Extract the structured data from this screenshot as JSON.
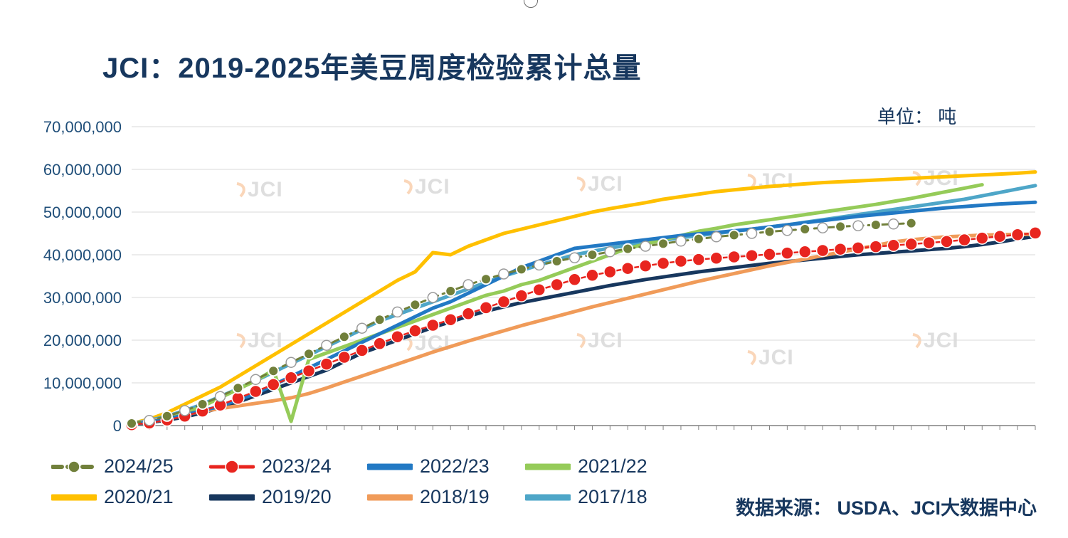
{
  "page": {
    "title": "JCI：2019-2025年美豆周度检验累计总量",
    "unit_label": "单位： 吨",
    "source": "数据来源： USDA、JCI大数据中心",
    "watermark": "JCI"
  },
  "chart_data": {
    "type": "line",
    "title": "JCI：2019-2025年美豆周度检验累计总量",
    "unit": "吨",
    "x_axis": "marketing-year week 1-52 (x tick marks shown, no labels)",
    "weeks": 52,
    "ylim_tons": [
      0,
      70000000
    ],
    "y_tick_labels": [
      "0",
      "10,000,000",
      "20,000,000",
      "30,000,000",
      "40,000,000",
      "50,000,000",
      "60,000,000",
      "70,000,000"
    ],
    "values_unit": "million tons (cumulative)",
    "grid": "horizontal only",
    "legend_position": "bottom",
    "series": [
      {
        "name": "2024/25",
        "color": "#71803B",
        "style": "dashed-marker",
        "values_millions": [
          0.5,
          1.2,
          2.2,
          3.5,
          5.0,
          6.8,
          8.8,
          10.8,
          12.8,
          14.8,
          16.8,
          18.8,
          20.8,
          22.8,
          24.8,
          26.6,
          28.3,
          30.0,
          31.5,
          33.0,
          34.3,
          35.5,
          36.6,
          37.6,
          38.5,
          39.3,
          40.0,
          40.7,
          41.4,
          42.0,
          42.6,
          43.2,
          43.7,
          44.2,
          44.6,
          45.0,
          45.4,
          45.7,
          46.0,
          46.3,
          46.6,
          46.8,
          47.0,
          47.2,
          47.4
        ]
      },
      {
        "name": "2023/24",
        "color": "#E8251F",
        "style": "line-marker",
        "values_millions": [
          0.2,
          0.6,
          1.3,
          2.2,
          3.4,
          4.8,
          6.4,
          8.0,
          9.6,
          11.2,
          12.8,
          14.4,
          16.0,
          17.6,
          19.2,
          20.8,
          22.2,
          23.5,
          24.8,
          26.2,
          27.6,
          29.0,
          30.4,
          31.8,
          33.0,
          34.2,
          35.2,
          36.0,
          36.8,
          37.4,
          38.0,
          38.5,
          38.9,
          39.2,
          39.5,
          39.8,
          40.1,
          40.4,
          40.7,
          41.0,
          41.3,
          41.6,
          41.9,
          42.2,
          42.5,
          42.8,
          43.1,
          43.5,
          43.9,
          44.3,
          44.7,
          45.1
        ]
      },
      {
        "name": "2022/23",
        "color": "#2279C4",
        "style": "solid",
        "values_millions": [
          0.3,
          0.8,
          1.5,
          2.5,
          3.5,
          4.5,
          6.0,
          7.5,
          9.5,
          11.5,
          13.5,
          15.5,
          17.5,
          19.5,
          21.5,
          23.5,
          25.5,
          27.5,
          29.0,
          31.0,
          33.0,
          35.0,
          37.0,
          38.5,
          40.0,
          41.5,
          42.0,
          42.5,
          43.0,
          43.5,
          44.0,
          44.5,
          44.9,
          45.2,
          45.6,
          46.0,
          46.5,
          47.0,
          47.5,
          48.0,
          48.5,
          49.0,
          49.4,
          49.8,
          50.2,
          50.6,
          51.0,
          51.3,
          51.6,
          51.9,
          52.1,
          52.3
        ]
      },
      {
        "name": "2021/22",
        "color": "#95CB59",
        "style": "solid",
        "values_millions": [
          0.3,
          0.8,
          1.5,
          2.8,
          4.5,
          6.5,
          8.5,
          10.5,
          13.0,
          1.0,
          15.5,
          17.0,
          18.5,
          20.0,
          21.5,
          23.0,
          24.5,
          26.0,
          27.5,
          29.0,
          30.5,
          31.5,
          33.0,
          34.0,
          35.5,
          37.0,
          38.5,
          40.0,
          41.5,
          42.5,
          43.5,
          44.5,
          45.5,
          46.2,
          47.0,
          47.6,
          48.2,
          48.8,
          49.4,
          50.0,
          50.6,
          51.2,
          51.8,
          52.5,
          53.2,
          54.0,
          54.8,
          55.6,
          56.4
        ]
      },
      {
        "name": "2020/21",
        "color": "#FFC000",
        "style": "solid",
        "values_millions": [
          0.5,
          1.5,
          3.0,
          5.0,
          7.0,
          9.0,
          11.5,
          14.0,
          16.5,
          19.0,
          21.5,
          24.0,
          26.5,
          29.0,
          31.5,
          34.0,
          36.0,
          40.5,
          40.0,
          42.0,
          43.5,
          45.0,
          46.0,
          47.0,
          48.0,
          49.0,
          50.0,
          50.8,
          51.5,
          52.2,
          53.0,
          53.6,
          54.2,
          54.8,
          55.2,
          55.6,
          56.0,
          56.3,
          56.6,
          56.9,
          57.1,
          57.3,
          57.5,
          57.7,
          57.9,
          58.1,
          58.3,
          58.5,
          58.7,
          58.9,
          59.1,
          59.4
        ]
      },
      {
        "name": "2019/20",
        "color": "#17375E",
        "style": "solid",
        "values_millions": [
          0.3,
          0.7,
          1.3,
          2.0,
          3.0,
          4.2,
          5.5,
          7.0,
          8.5,
          10.0,
          11.5,
          13.0,
          15.0,
          17.0,
          18.5,
          20.0,
          21.5,
          23.0,
          24.3,
          25.6,
          26.8,
          27.8,
          28.8,
          29.6,
          30.4,
          31.2,
          32.0,
          32.8,
          33.5,
          34.2,
          34.8,
          35.4,
          36.0,
          36.5,
          37.0,
          37.5,
          38.0,
          38.4,
          38.8,
          39.2,
          39.6,
          40.0,
          40.3,
          40.6,
          40.9,
          41.2,
          41.5,
          41.9,
          42.4,
          43.0,
          43.7,
          44.3
        ]
      },
      {
        "name": "2018/19",
        "color": "#F09B59",
        "style": "solid",
        "values_millions": [
          0.4,
          1.0,
          1.8,
          2.6,
          3.3,
          4.0,
          4.6,
          5.2,
          5.8,
          6.5,
          7.5,
          8.8,
          10.2,
          11.6,
          13.0,
          14.4,
          15.8,
          17.2,
          18.5,
          19.8,
          21.0,
          22.2,
          23.4,
          24.5,
          25.6,
          26.7,
          27.8,
          28.8,
          29.8,
          30.8,
          31.8,
          32.8,
          33.8,
          34.7,
          35.6,
          36.5,
          37.4,
          38.2,
          39.0,
          39.8,
          40.6,
          41.4,
          42.2,
          43.0,
          43.5,
          43.9,
          44.2,
          44.4,
          44.6,
          44.7,
          44.8,
          44.8
        ]
      },
      {
        "name": "2017/18",
        "color": "#4EA6C8",
        "style": "solid",
        "values_millions": [
          0.5,
          1.2,
          2.2,
          3.5,
          5.0,
          6.8,
          8.6,
          10.5,
          12.5,
          14.5,
          16.5,
          18.5,
          20.5,
          22.5,
          24.5,
          26.0,
          27.5,
          29.0,
          30.5,
          32.0,
          33.5,
          35.0,
          36.3,
          37.6,
          38.8,
          40.0,
          40.8,
          41.6,
          42.2,
          42.8,
          43.4,
          44.0,
          44.5,
          45.0,
          45.5,
          46.0,
          46.5,
          47.0,
          47.6,
          48.2,
          48.8,
          49.4,
          50.0,
          50.6,
          51.2,
          51.8,
          52.4,
          53.0,
          53.8,
          54.6,
          55.4,
          56.2
        ]
      }
    ]
  }
}
